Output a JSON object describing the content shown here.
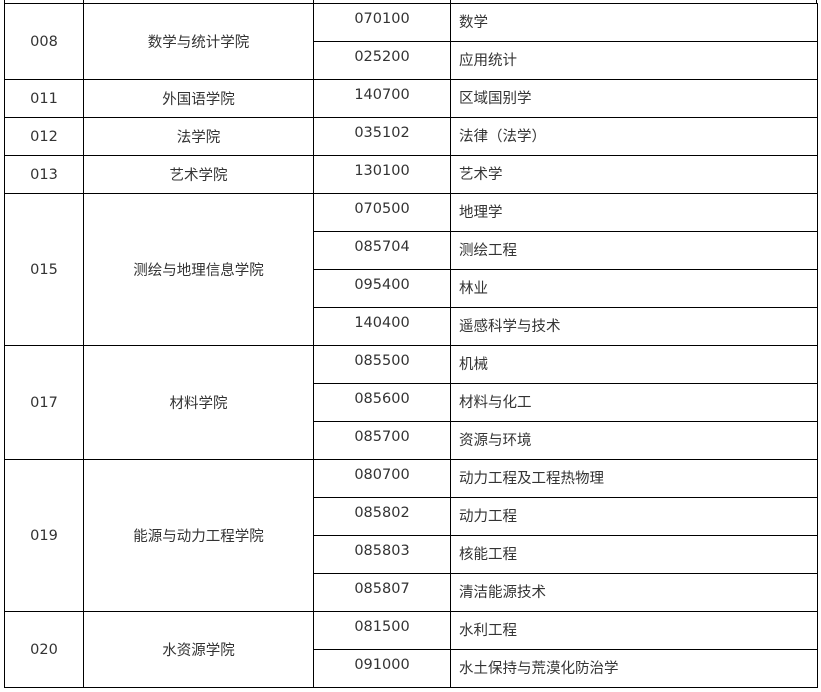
{
  "colleges": [
    {
      "code": "008",
      "name": "数学与统计学院",
      "majors": [
        {
          "code": "070100",
          "name": "数学"
        },
        {
          "code": "025200",
          "name": "应用统计"
        }
      ]
    },
    {
      "code": "011",
      "name": "外国语学院",
      "majors": [
        {
          "code": "140700",
          "name": "区域国别学"
        }
      ]
    },
    {
      "code": "012",
      "name": "法学院",
      "majors": [
        {
          "code": "035102",
          "name": "法律（法学）"
        }
      ]
    },
    {
      "code": "013",
      "name": "艺术学院",
      "majors": [
        {
          "code": "130100",
          "name": "艺术学"
        }
      ]
    },
    {
      "code": "015",
      "name": "测绘与地理信息学院",
      "majors": [
        {
          "code": "070500",
          "name": "地理学"
        },
        {
          "code": "085704",
          "name": "测绘工程"
        },
        {
          "code": "095400",
          "name": "林业"
        },
        {
          "code": "140400",
          "name": "遥感科学与技术"
        }
      ]
    },
    {
      "code": "017",
      "name": "材料学院",
      "majors": [
        {
          "code": "085500",
          "name": "机械"
        },
        {
          "code": "085600",
          "name": "材料与化工"
        },
        {
          "code": "085700",
          "name": "资源与环境"
        }
      ]
    },
    {
      "code": "019",
      "name": "能源与动力工程学院",
      "majors": [
        {
          "code": "080700",
          "name": "动力工程及工程热物理"
        },
        {
          "code": "085802",
          "name": "动力工程"
        },
        {
          "code": "085803",
          "name": "核能工程"
        },
        {
          "code": "085807",
          "name": "清洁能源技术"
        }
      ]
    },
    {
      "code": "020",
      "name": "水资源学院",
      "majors": [
        {
          "code": "081500",
          "name": "水利工程"
        },
        {
          "code": "091000",
          "name": "水土保持与荒漠化防治学"
        }
      ]
    }
  ]
}
